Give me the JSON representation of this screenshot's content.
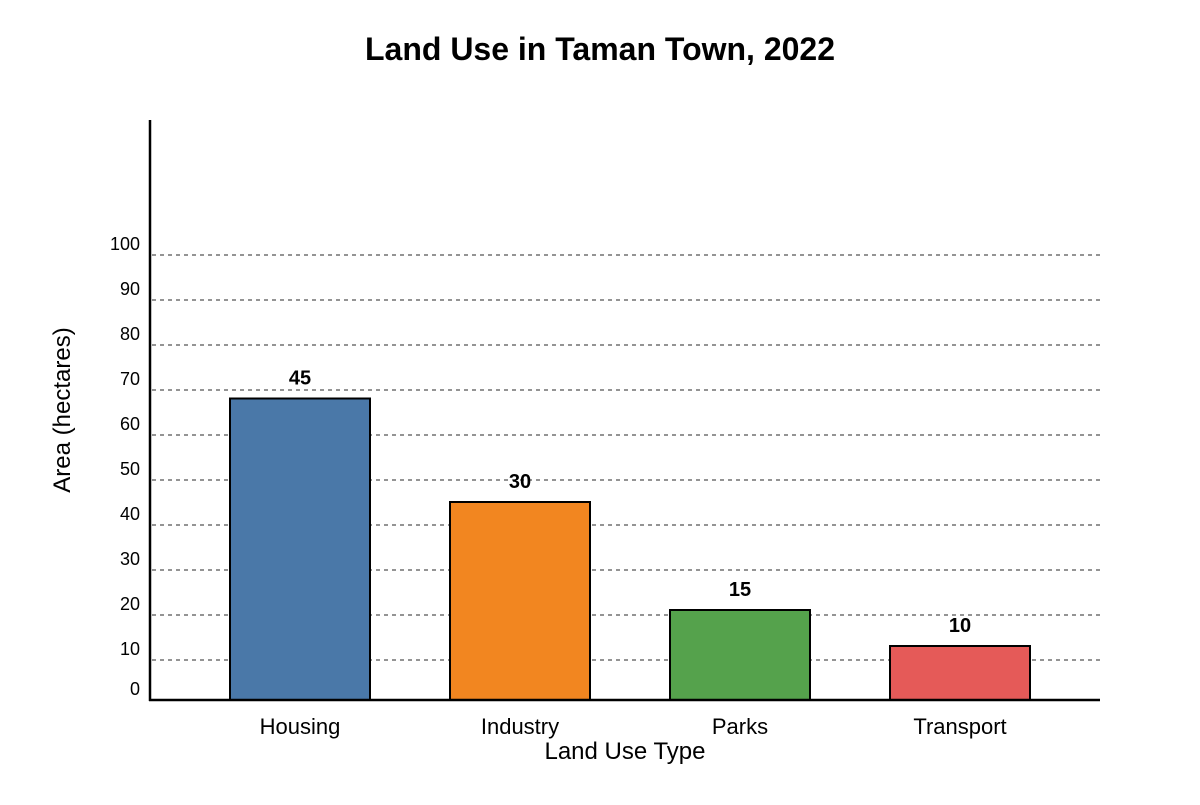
{
  "chart_data": {
    "type": "bar",
    "title": "Land Use in Taman Town, 2022",
    "xlabel": "Land Use Type",
    "ylabel": "Area (hectares)",
    "categories": [
      "Housing",
      "Industry",
      "Parks",
      "Transport"
    ],
    "values": [
      45,
      30,
      15,
      10
    ],
    "data_labels": [
      "45",
      "30",
      "15",
      "10"
    ],
    "colors": [
      "#4a78a8",
      "#f28620",
      "#55a24c",
      "#e55a58"
    ],
    "bar_extents": [
      67,
      44,
      20,
      12
    ],
    "ylim": [
      0,
      100
    ],
    "yticks": [
      0,
      10,
      20,
      30,
      40,
      50,
      60,
      70,
      80,
      90,
      100
    ],
    "grid": true,
    "legend": "none"
  }
}
